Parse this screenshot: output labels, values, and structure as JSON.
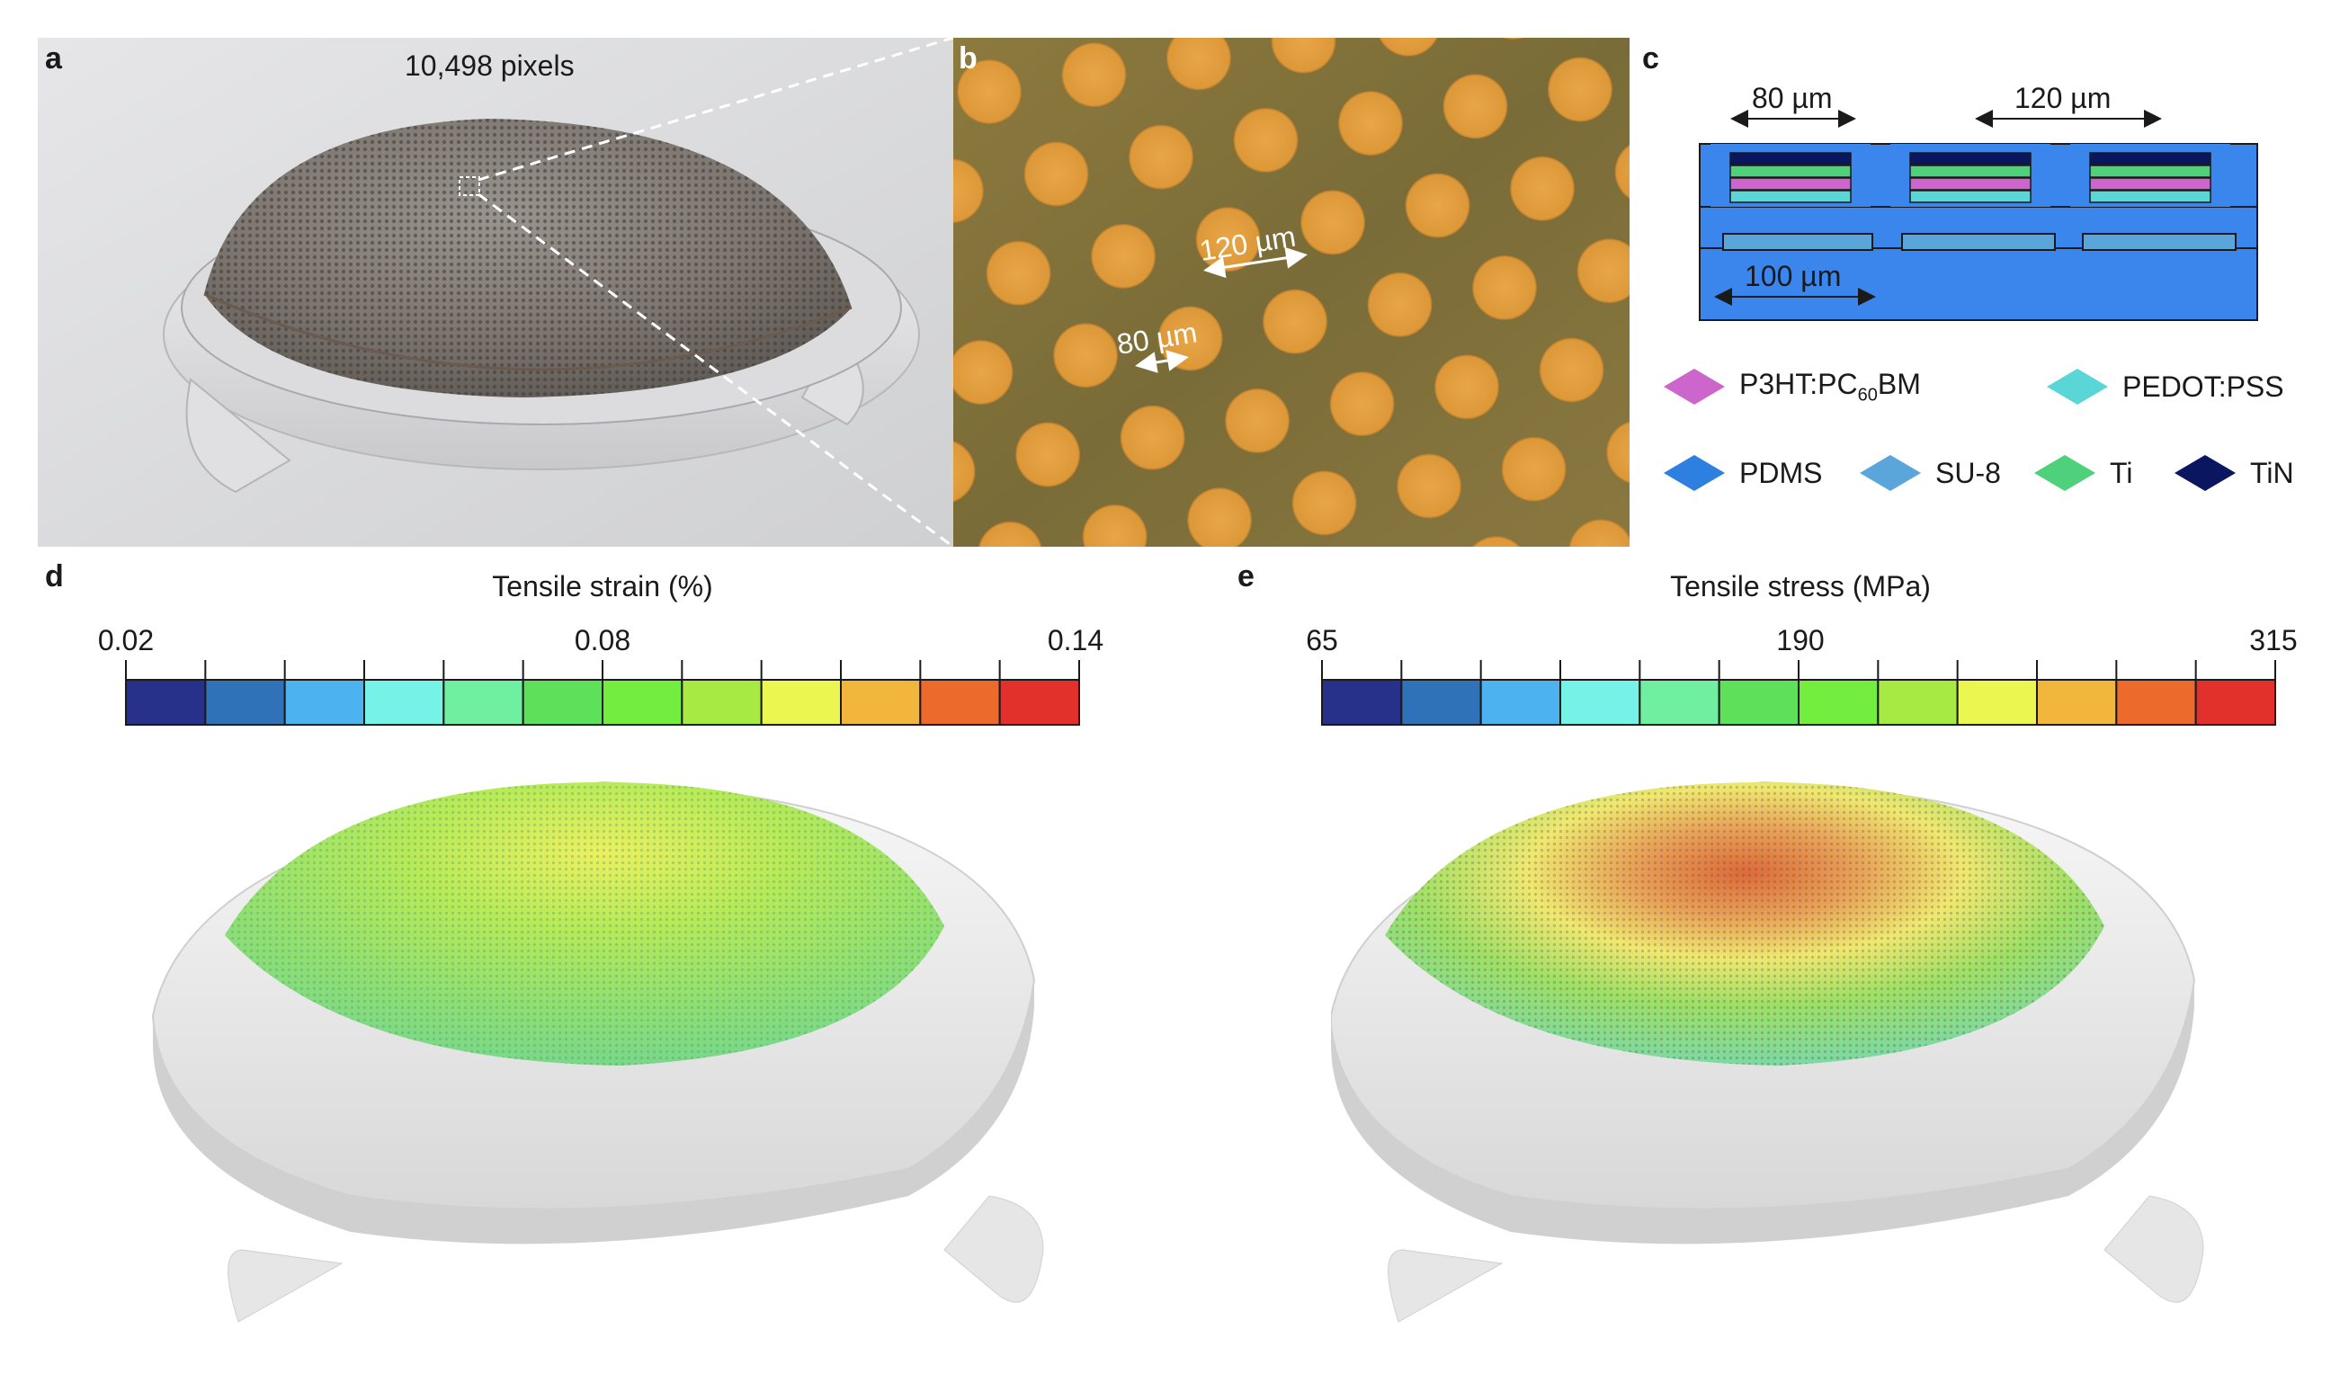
{
  "panels": {
    "a": {
      "letter": "a",
      "caption": "10,498 pixels"
    },
    "b": {
      "letter": "b",
      "pitch_label": "120 µm",
      "diameter_label": "80 µm"
    },
    "c": {
      "letter": "c",
      "dim_top_left": "80 µm",
      "dim_top_right": "120 µm",
      "dim_bottom": "100 µm"
    },
    "d": {
      "letter": "d",
      "title": "Tensile strain (%)",
      "ticks": [
        "0.02",
        "0.08",
        "0.14"
      ]
    },
    "e": {
      "letter": "e",
      "title": "Tensile stress (MPa)",
      "ticks": [
        "65",
        "190",
        "315"
      ]
    }
  },
  "legend": [
    {
      "id": "p3ht",
      "label_main": "P3HT:PC",
      "label_sub": "60",
      "label_tail": "BM",
      "color": "#cc66cc"
    },
    {
      "id": "pedot",
      "label_main": "PEDOT:PSS",
      "color": "#5ad6d6"
    },
    {
      "id": "pdms",
      "label_main": "PDMS",
      "color": "#2d7fe0"
    },
    {
      "id": "su8",
      "label_main": "SU-8",
      "color": "#5aa6da"
    },
    {
      "id": "ti",
      "label_main": "Ti",
      "color": "#4fd07a"
    },
    {
      "id": "tin",
      "label_main": "TiN",
      "color": "#0b1660"
    }
  ],
  "colormap": [
    "#27318a",
    "#2f72b8",
    "#4db3f0",
    "#76f2e6",
    "#6ef0a0",
    "#5ee05a",
    "#74ee3e",
    "#a8ea44",
    "#ecf650",
    "#f2b63c",
    "#ec6a2c",
    "#e2312c"
  ]
}
